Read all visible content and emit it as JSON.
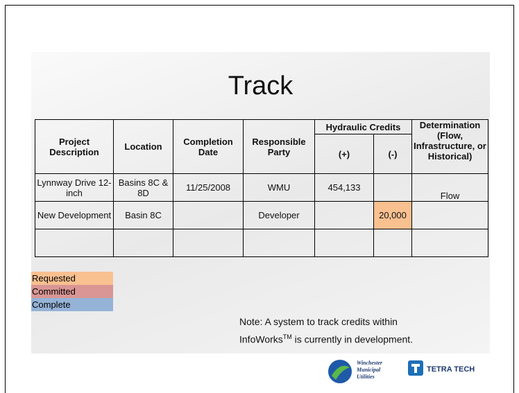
{
  "title": "Track",
  "table": {
    "headers": [
      "Project Description",
      "Location",
      "Completion Date",
      "Responsible Party",
      "Hydraulic Credits",
      "(+)",
      "(-)",
      "Determination (Flow, Infrastructure, or Historical)"
    ],
    "rows": [
      [
        "Lynnway Drive 12-inch",
        "Basins 8C & 8D",
        "11/25/2008",
        "WMU",
        "454,133",
        null,
        "Flow"
      ],
      [
        "New Development",
        "Basin 8C",
        null,
        "Developer",
        null,
        "20,000",
        null
      ],
      [
        null,
        null,
        null,
        null,
        null,
        null,
        null
      ]
    ]
  },
  "legend": [
    {
      "label": "Requested",
      "color": "#f9c090"
    },
    {
      "label": "Committed",
      "color": "#d99694"
    },
    {
      "label": "Complete",
      "color": "#95b3d7"
    }
  ],
  "note": {
    "line1": "Note: A system to track credits within",
    "line2_start": "InfoWorks",
    "superscript": "TM",
    "line2_end": " is currently in development."
  },
  "logos": {
    "winchester": [
      "Winchester",
      "Municipal",
      "Utilities"
    ],
    "tetratech": "TETRA TECH"
  }
}
